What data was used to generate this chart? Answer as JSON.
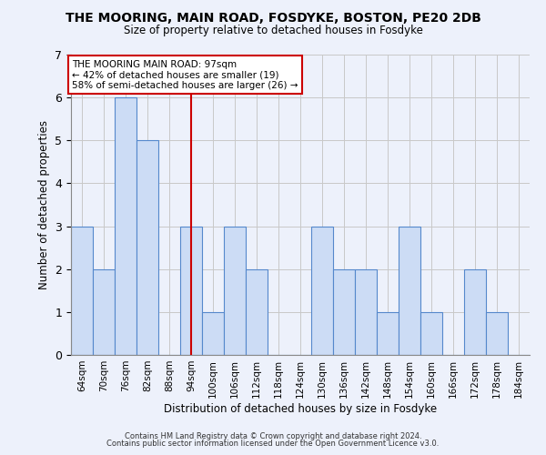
{
  "title": "THE MOORING, MAIN ROAD, FOSDYKE, BOSTON, PE20 2DB",
  "subtitle": "Size of property relative to detached houses in Fosdyke",
  "xlabel": "Distribution of detached houses by size in Fosdyke",
  "ylabel": "Number of detached properties",
  "bins": [
    64,
    70,
    76,
    82,
    88,
    94,
    100,
    106,
    112,
    118,
    124,
    130,
    136,
    142,
    148,
    154,
    160,
    166,
    172,
    178,
    184
  ],
  "counts": [
    3,
    2,
    6,
    5,
    0,
    3,
    1,
    3,
    2,
    0,
    0,
    3,
    2,
    2,
    1,
    3,
    1,
    0,
    2,
    1,
    0
  ],
  "bin_width": 6,
  "marker_value": 97,
  "annotation_line1": "THE MOORING MAIN ROAD: 97sqm",
  "annotation_line2": "← 42% of detached houses are smaller (19)",
  "annotation_line3": "58% of semi-detached houses are larger (26) →",
  "bar_color": "#ccdcf5",
  "bar_edge_color": "#5588cc",
  "marker_line_color": "#cc0000",
  "annotation_box_edge_color": "#cc0000",
  "grid_color": "#c8c8c8",
  "ylim": [
    0,
    7
  ],
  "yticks": [
    0,
    1,
    2,
    3,
    4,
    5,
    6,
    7
  ],
  "footnote1": "Contains HM Land Registry data © Crown copyright and database right 2024.",
  "footnote2": "Contains public sector information licensed under the Open Government Licence v3.0.",
  "background_color": "#edf1fb"
}
